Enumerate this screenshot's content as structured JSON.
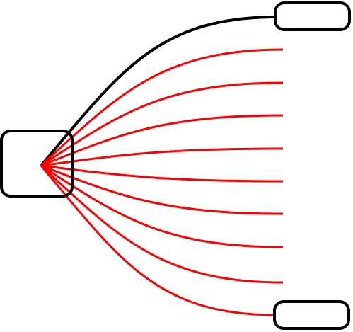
{
  "diagram": {
    "source_node": {
      "label": ""
    },
    "target_nodes": [
      {
        "label": ""
      },
      {
        "label": ""
      }
    ],
    "connections": {
      "highlighted_count": 1,
      "fan_count": 8,
      "fan_has_terminal_node": true
    },
    "colors": {
      "node_stroke": "#000000",
      "highlighted_edge": "#000000",
      "fan_edge": "#ff0000",
      "background": "#ffffff"
    }
  }
}
